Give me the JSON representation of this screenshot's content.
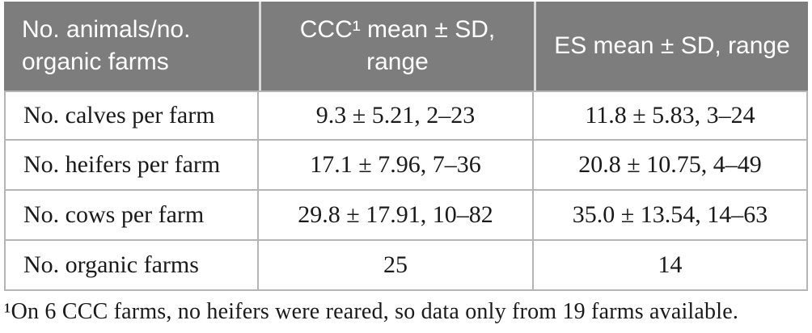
{
  "table": {
    "columns": [
      {
        "label": "No. animals/no. organic farms"
      },
      {
        "label": "CCC¹ mean ± SD, range"
      },
      {
        "label": "ES mean ± SD, range"
      }
    ],
    "rows": [
      {
        "label": "No. calves per farm",
        "ccc": "9.3 ± 5.21, 2–23",
        "es": "11.8 ± 5.83, 3–24"
      },
      {
        "label": "No. heifers per farm",
        "ccc": "17.1 ± 7.96, 7–36",
        "es": "20.8 ± 10.75, 4–49"
      },
      {
        "label": "No. cows per farm",
        "ccc": "29.8 ± 17.91, 10–82",
        "es": "35.0 ± 13.54, 14–63"
      },
      {
        "label": "No. organic farms",
        "ccc": "25",
        "es": "14"
      }
    ],
    "footnote": "¹On 6 CCC farms, no heifers were reared, so data only from 19 farms available."
  },
  "colors": {
    "header_bg": "#7d7d7d",
    "header_text": "#ffffff",
    "header_divider": "#d9d9d9",
    "body_border": "#b5b5b5",
    "body_text": "#1a1a1a",
    "page_bg": "#ffffff"
  }
}
